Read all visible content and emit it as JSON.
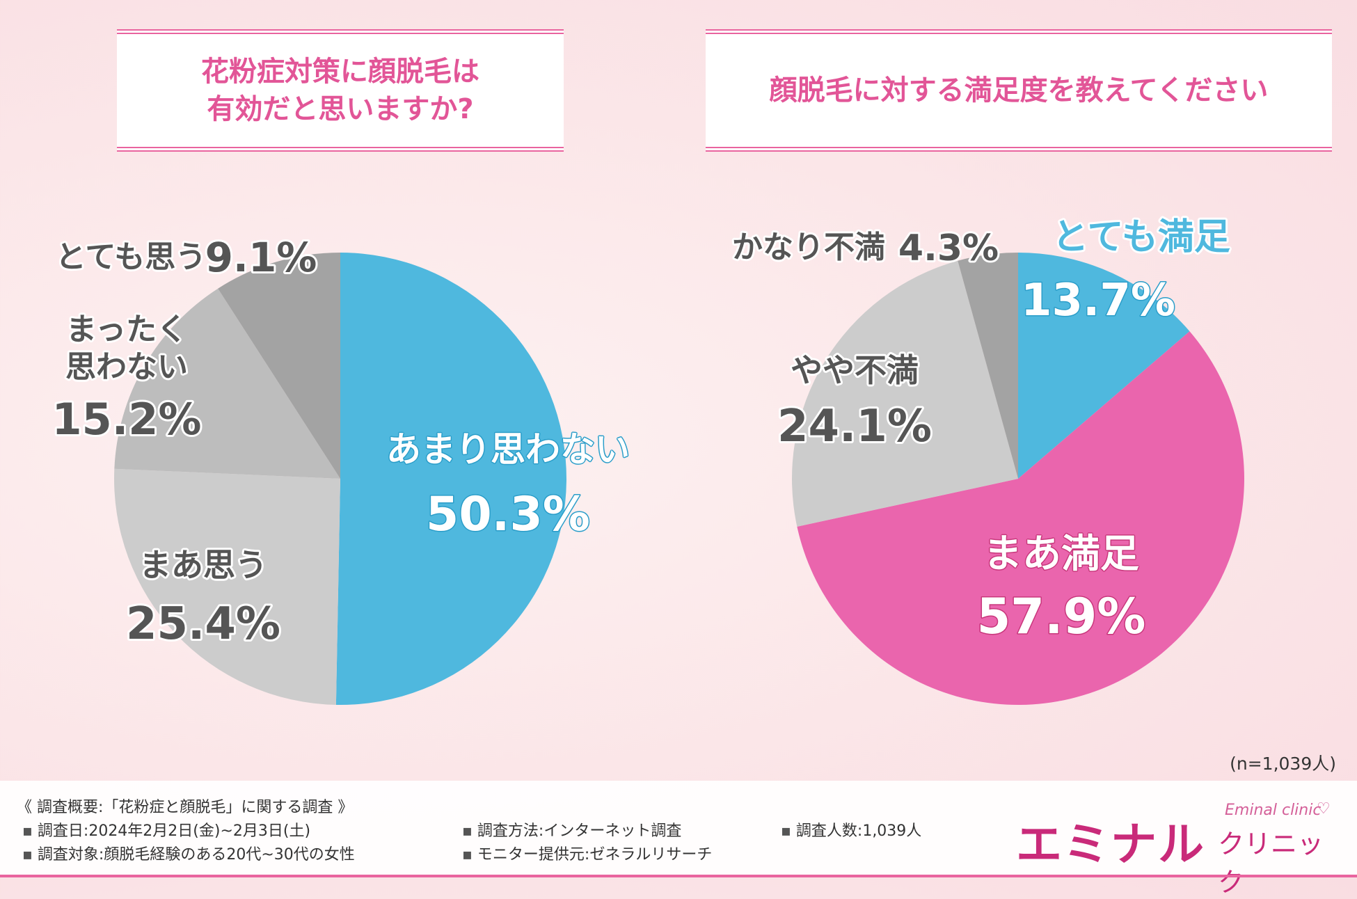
{
  "colors": {
    "accent": "#e9649f",
    "blue": "#4fb8de",
    "pink": "#ea65ad",
    "gray_light": "#cccccc",
    "gray_mid": "#bdbdbd",
    "gray_dark": "#a3a3a3"
  },
  "sample_size": "(n=1,039人)",
  "chart_data": [
    {
      "type": "pie",
      "title": "花粉症対策に顔脱毛は\n有効だと思いますか?",
      "slices": [
        {
          "label": "あまり思わない",
          "value": 50.3,
          "value_text": "50.3%",
          "color": "#4fb8de"
        },
        {
          "label": "まあ思う",
          "value": 25.4,
          "value_text": "25.4%",
          "color": "#cccccc"
        },
        {
          "label": "まったく\n思わない",
          "value": 15.2,
          "value_text": "15.2%",
          "color": "#bdbdbd"
        },
        {
          "label": "とても思う",
          "value": 9.1,
          "value_text": "9.1%",
          "color": "#a3a3a3"
        }
      ]
    },
    {
      "type": "pie",
      "title": "顔脱毛に対する満足度を教えてください",
      "slices": [
        {
          "label": "とても満足",
          "value": 13.7,
          "value_text": "13.7%",
          "color": "#4fb8de"
        },
        {
          "label": "まあ満足",
          "value": 57.9,
          "value_text": "57.9%",
          "color": "#ea65ad"
        },
        {
          "label": "やや不満",
          "value": 24.1,
          "value_text": "24.1%",
          "color": "#cccccc"
        },
        {
          "label": "かなり不満",
          "value": 4.3,
          "value_text": "4.3%",
          "color": "#a3a3a3"
        }
      ]
    }
  ],
  "footer": {
    "heading": "《 調査概要:「花粉症と顔脱毛」に関する調査 》",
    "date": "調査日:2024年2月2日(金)~2月3日(土)",
    "target": "調査対象:顔脱毛経験のある20代~30代の女性",
    "method": "調査方法:インターネット調査",
    "monitor": "モニター提供元:ゼネラルリサーチ",
    "count": "調査人数:1,039人"
  },
  "logo": {
    "main": "エミナル",
    "sub": "クリニック",
    "script": "Eminal clinic",
    "heart": "♡"
  }
}
